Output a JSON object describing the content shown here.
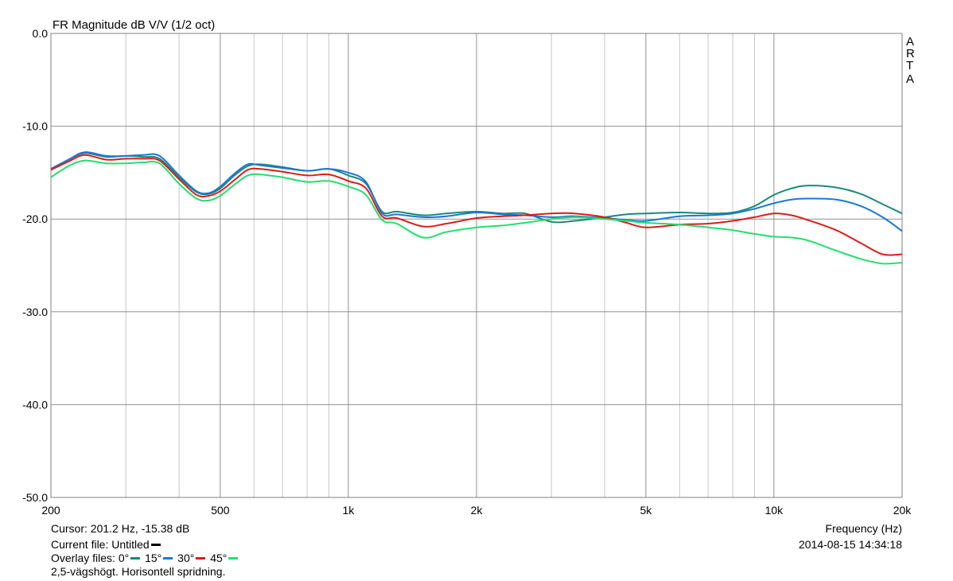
{
  "chart_data": {
    "type": "line",
    "title": "FR Magnitude dB V/V (1/2 oct)",
    "xlabel": "Frequency (Hz)",
    "xscale": "log",
    "xlim": [
      200,
      20000
    ],
    "ylim": [
      -50,
      0
    ],
    "grid": true,
    "x_ticks": [
      {
        "value": 200,
        "label": "200"
      },
      {
        "value": 500,
        "label": "500"
      },
      {
        "value": 1000,
        "label": "1k"
      },
      {
        "value": 2000,
        "label": "2k"
      },
      {
        "value": 5000,
        "label": "5k"
      },
      {
        "value": 10000,
        "label": "10k"
      },
      {
        "value": 20000,
        "label": "20k"
      }
    ],
    "y_ticks": [
      {
        "value": 0,
        "label": "0.0"
      },
      {
        "value": -10,
        "label": "-10.0"
      },
      {
        "value": -20,
        "label": "-20.0"
      },
      {
        "value": -30,
        "label": "-30.0"
      },
      {
        "value": -40,
        "label": "-40.0"
      },
      {
        "value": -50,
        "label": "-50.0"
      }
    ],
    "x": [
      200,
      220,
      240,
      270,
      300,
      330,
      360,
      400,
      440,
      470,
      500,
      540,
      580,
      620,
      700,
      800,
      900,
      1000,
      1100,
      1200,
      1300,
      1500,
      1700,
      2000,
      2300,
      2600,
      3000,
      3400,
      4000,
      4500,
      5000,
      6000,
      7000,
      8000,
      9000,
      10000,
      11000,
      12000,
      14000,
      16000,
      18000,
      20000
    ],
    "series": [
      {
        "name": "0°",
        "color": "#1a8a7a",
        "values": [
          -14.6,
          -13.6,
          -12.9,
          -13.3,
          -13.2,
          -13.3,
          -13.5,
          -15.5,
          -17.1,
          -17.3,
          -16.7,
          -15.3,
          -14.3,
          -14.1,
          -14.4,
          -14.8,
          -14.6,
          -15.3,
          -16.2,
          -19.2,
          -19.2,
          -19.6,
          -19.4,
          -19.2,
          -19.4,
          -19.4,
          -20.3,
          -20.2,
          -19.8,
          -19.5,
          -19.4,
          -19.3,
          -19.4,
          -19.3,
          -18.6,
          -17.4,
          -16.7,
          -16.4,
          -16.6,
          -17.3,
          -18.4,
          -19.4
        ]
      },
      {
        "name": "15°",
        "color": "#1a78d8",
        "values": [
          -14.6,
          -13.6,
          -12.8,
          -13.2,
          -13.2,
          -13.1,
          -13.2,
          -15.3,
          -17.0,
          -17.2,
          -16.5,
          -15.1,
          -14.1,
          -14.2,
          -14.5,
          -14.8,
          -14.6,
          -15.0,
          -16.0,
          -19.4,
          -19.5,
          -19.8,
          -19.7,
          -19.3,
          -19.5,
          -19.6,
          -19.8,
          -19.7,
          -19.9,
          -20.1,
          -20.2,
          -19.7,
          -19.6,
          -19.4,
          -18.9,
          -18.3,
          -17.9,
          -17.8,
          -17.9,
          -18.6,
          -19.8,
          -21.3
        ]
      },
      {
        "name": "30°",
        "color": "#e01a1a",
        "values": [
          -14.7,
          -13.8,
          -13.1,
          -13.6,
          -13.5,
          -13.5,
          -13.7,
          -15.7,
          -17.4,
          -17.5,
          -17.0,
          -15.8,
          -14.7,
          -14.6,
          -14.9,
          -15.3,
          -15.2,
          -15.9,
          -16.7,
          -19.7,
          -19.9,
          -20.8,
          -20.5,
          -19.9,
          -19.7,
          -19.6,
          -19.4,
          -19.4,
          -19.8,
          -20.4,
          -20.9,
          -20.6,
          -20.5,
          -20.2,
          -19.8,
          -19.4,
          -19.6,
          -20.1,
          -21.2,
          -22.6,
          -23.8,
          -23.8
        ]
      },
      {
        "name": "45°",
        "color": "#22e06e",
        "values": [
          -15.5,
          -14.3,
          -13.7,
          -14.0,
          -14.0,
          -13.9,
          -14.0,
          -16.2,
          -17.8,
          -18.0,
          -17.5,
          -16.3,
          -15.3,
          -15.2,
          -15.5,
          -16.0,
          -15.9,
          -16.5,
          -17.4,
          -20.1,
          -20.5,
          -22.0,
          -21.4,
          -20.9,
          -20.7,
          -20.4,
          -20.0,
          -19.8,
          -20.0,
          -20.2,
          -20.4,
          -20.6,
          -20.9,
          -21.2,
          -21.6,
          -21.9,
          -22.0,
          -22.3,
          -23.4,
          -24.3,
          -24.8,
          -24.7
        ]
      }
    ]
  },
  "branding": {
    "side_label": [
      "A",
      "R",
      "T",
      "A"
    ]
  },
  "footer": {
    "cursor": "Cursor: 201.2 Hz, -15.38 dB",
    "current_file": "Current file: Untitled",
    "overlay_label": "Overlay files:",
    "overlay_items": [
      "0°",
      "15°",
      "30°",
      "45°"
    ],
    "comment": "2,5-vägshögt. Horisontell spridning.",
    "xlabel": "Frequency (Hz)",
    "timestamp": "2014-08-15  14:34:18"
  }
}
